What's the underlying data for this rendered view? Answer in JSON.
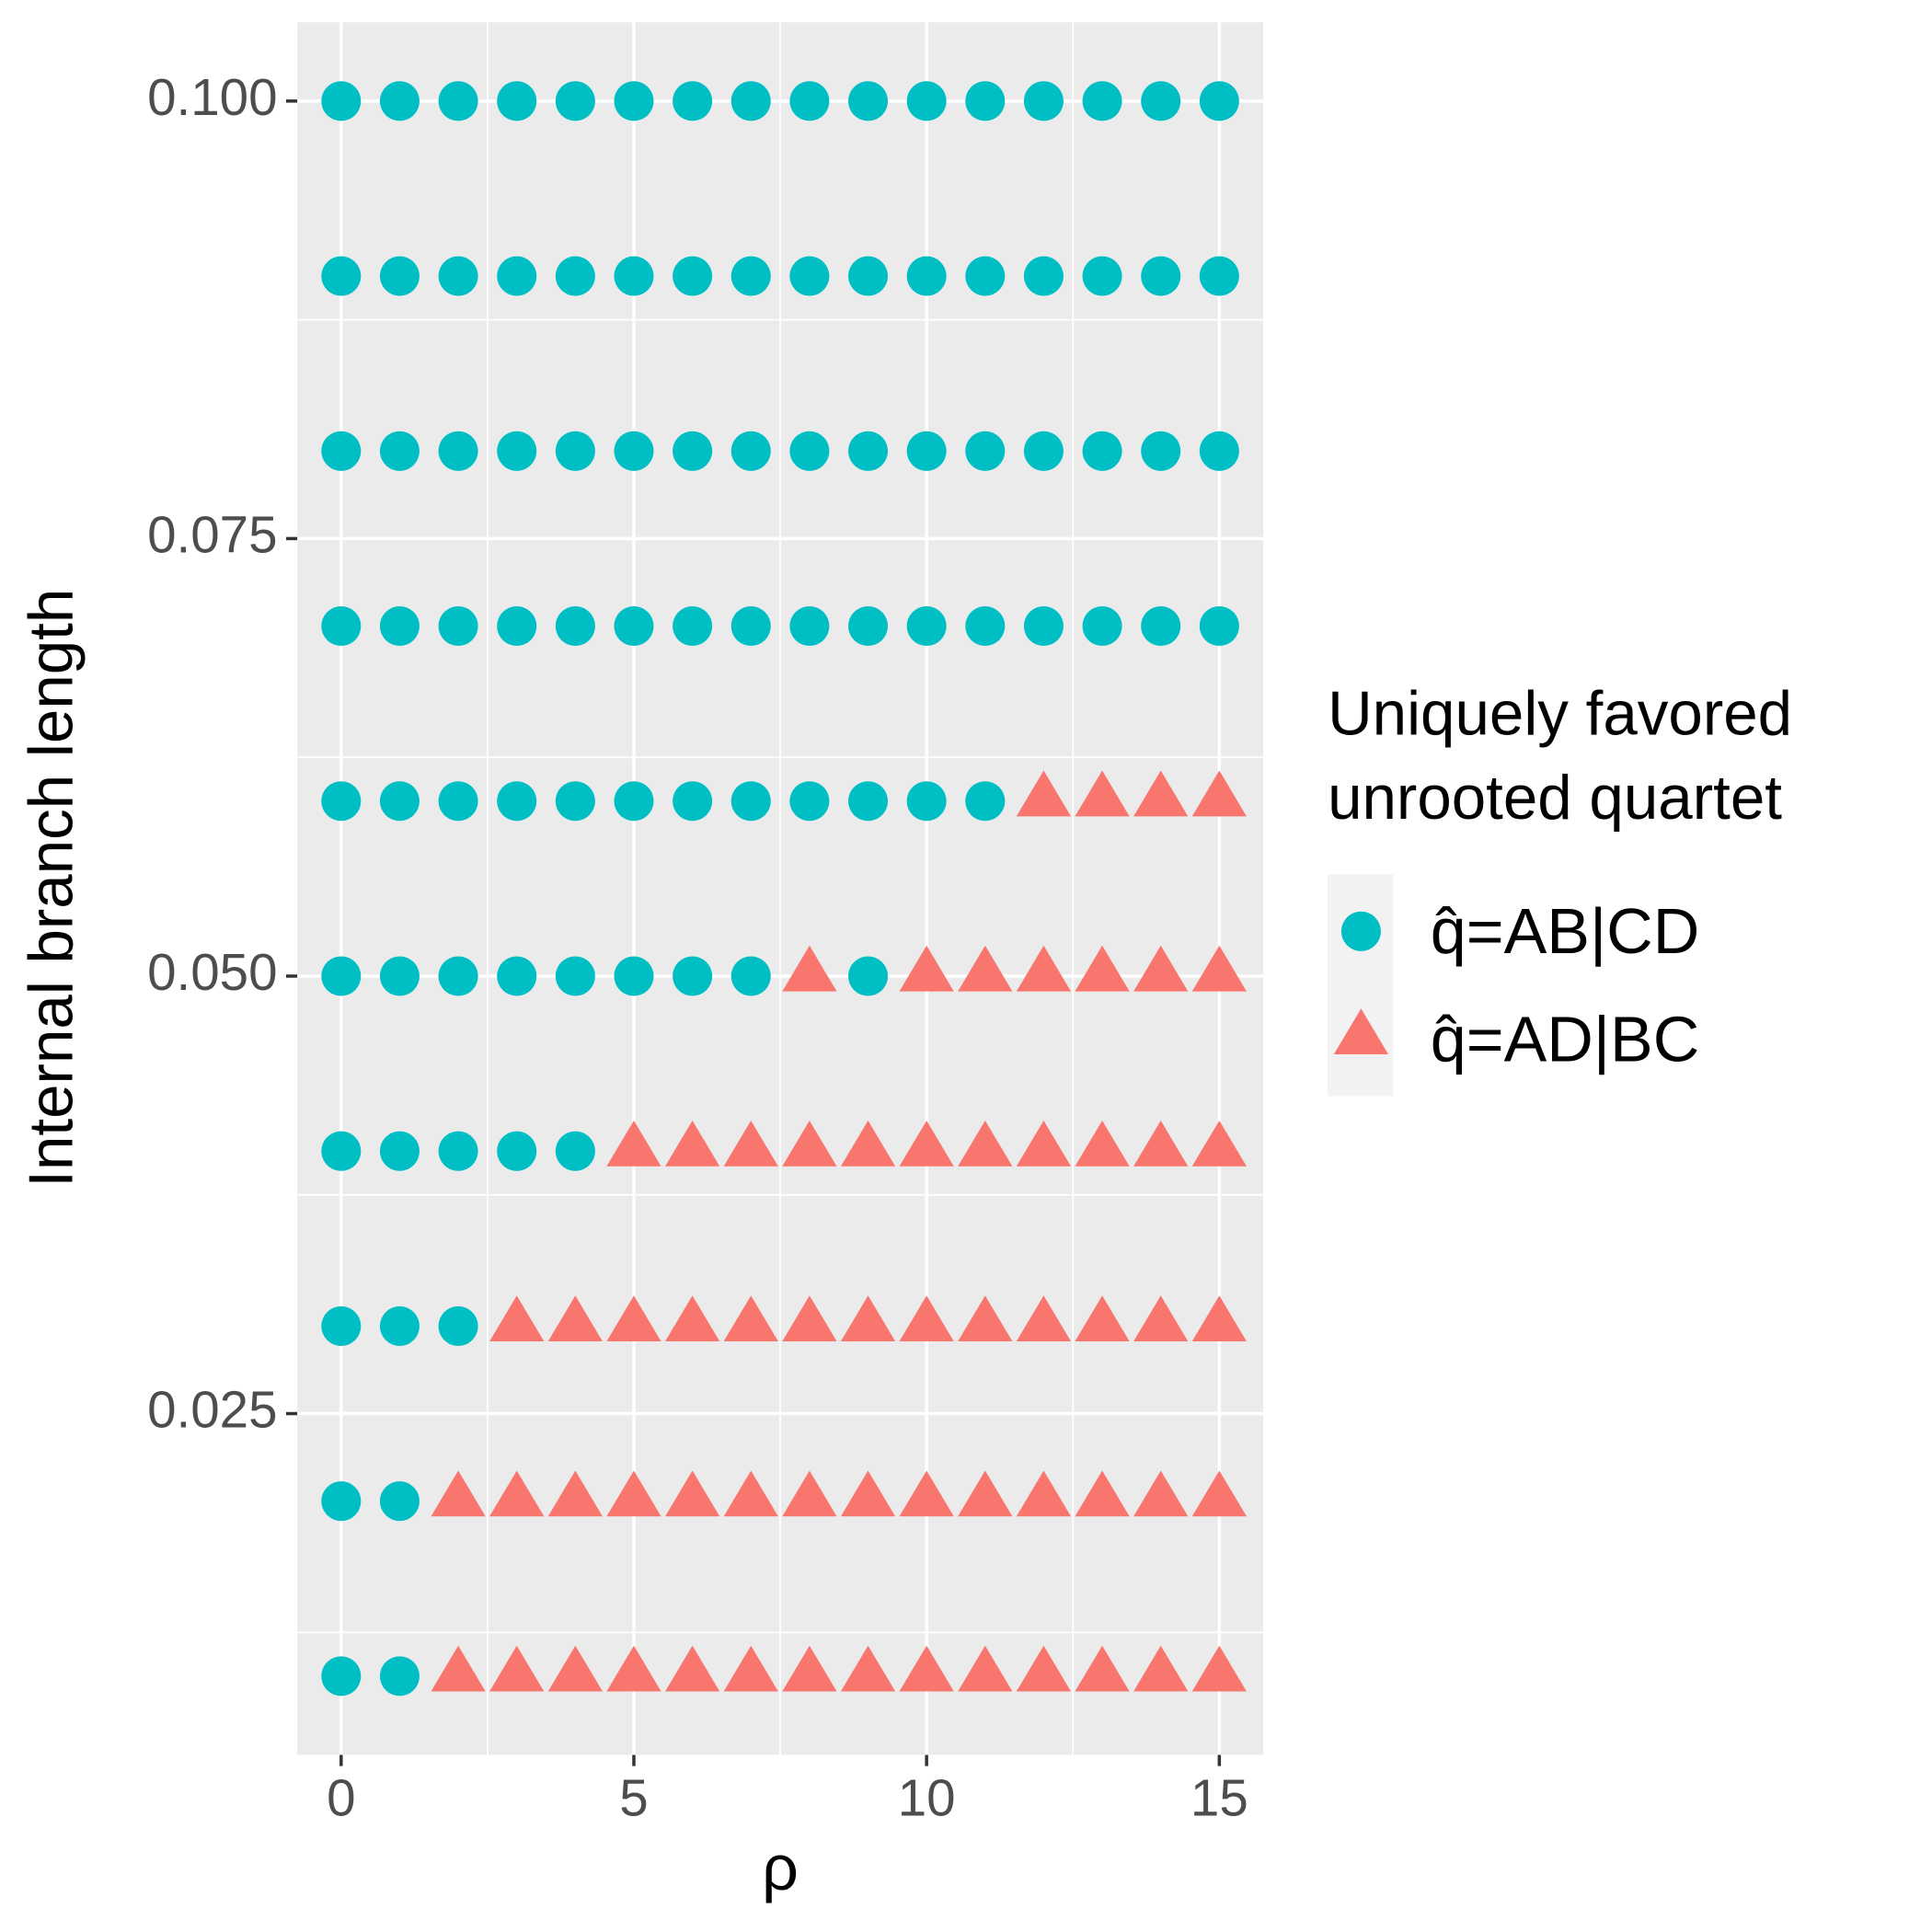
{
  "chart_data": {
    "type": "scatter",
    "x_label": "ρ",
    "y_label": "Internal branch length",
    "legend_title": [
      "Uniquely favored",
      "unrooted quartet"
    ],
    "legend_position": "right",
    "grid": true,
    "xlim": [
      -0.75,
      15.75
    ],
    "ylim": [
      0.0055,
      0.1045
    ],
    "xticks": [
      0,
      5,
      10,
      15
    ],
    "yticks": [
      0.025,
      {
        "value": 0.05,
        "label": "0.050"
      },
      0.075,
      {
        "value": 0.1,
        "label": "0.100"
      }
    ],
    "series": [
      {
        "name": "q̂=AB|CD",
        "color": "#00BFC4",
        "shape": "circle",
        "x": [
          0,
          1,
          0,
          1,
          0,
          1,
          2,
          0,
          1,
          2,
          3,
          4,
          0,
          1,
          2,
          3,
          4,
          5,
          6,
          7,
          9,
          0,
          1,
          2,
          3,
          4,
          5,
          6,
          7,
          8,
          9,
          10,
          11,
          0,
          1,
          2,
          3,
          4,
          5,
          6,
          7,
          8,
          9,
          10,
          11,
          12,
          13,
          14,
          15,
          0,
          1,
          2,
          3,
          4,
          5,
          6,
          7,
          8,
          9,
          10,
          11,
          12,
          13,
          14,
          15,
          0,
          1,
          2,
          3,
          4,
          5,
          6,
          7,
          8,
          9,
          10,
          11,
          12,
          13,
          14,
          15,
          0,
          1,
          2,
          3,
          4,
          5,
          6,
          7,
          8,
          9,
          10,
          11,
          12,
          13,
          14,
          15
        ],
        "values": [
          0.01,
          0.01,
          0.02,
          0.02,
          0.03,
          0.03,
          0.03,
          0.04,
          0.04,
          0.04,
          0.04,
          0.04,
          0.05,
          0.05,
          0.05,
          0.05,
          0.05,
          0.05,
          0.05,
          0.05,
          0.05,
          0.06,
          0.06,
          0.06,
          0.06,
          0.06,
          0.06,
          0.06,
          0.06,
          0.06,
          0.06,
          0.06,
          0.06,
          0.07,
          0.07,
          0.07,
          0.07,
          0.07,
          0.07,
          0.07,
          0.07,
          0.07,
          0.07,
          0.07,
          0.07,
          0.07,
          0.07,
          0.07,
          0.07,
          0.08,
          0.08,
          0.08,
          0.08,
          0.08,
          0.08,
          0.08,
          0.08,
          0.08,
          0.08,
          0.08,
          0.08,
          0.08,
          0.08,
          0.08,
          0.08,
          0.09,
          0.09,
          0.09,
          0.09,
          0.09,
          0.09,
          0.09,
          0.09,
          0.09,
          0.09,
          0.09,
          0.09,
          0.09,
          0.09,
          0.09,
          0.09,
          0.1,
          0.1,
          0.1,
          0.1,
          0.1,
          0.1,
          0.1,
          0.1,
          0.1,
          0.1,
          0.1,
          0.1,
          0.1,
          0.1,
          0.1,
          0.1
        ]
      },
      {
        "name": "q̂=AD|BC",
        "color": "#F8766D",
        "shape": "triangle",
        "x": [
          2,
          3,
          4,
          5,
          6,
          7,
          8,
          9,
          10,
          11,
          12,
          13,
          14,
          15,
          2,
          3,
          4,
          5,
          6,
          7,
          8,
          9,
          10,
          11,
          12,
          13,
          14,
          15,
          3,
          4,
          5,
          6,
          7,
          8,
          9,
          10,
          11,
          12,
          13,
          14,
          15,
          5,
          6,
          7,
          8,
          9,
          10,
          11,
          12,
          13,
          14,
          15,
          8,
          10,
          11,
          12,
          13,
          14,
          15,
          12,
          13,
          14,
          15
        ],
        "values": [
          0.01,
          0.01,
          0.01,
          0.01,
          0.01,
          0.01,
          0.01,
          0.01,
          0.01,
          0.01,
          0.01,
          0.01,
          0.01,
          0.01,
          0.02,
          0.02,
          0.02,
          0.02,
          0.02,
          0.02,
          0.02,
          0.02,
          0.02,
          0.02,
          0.02,
          0.02,
          0.02,
          0.02,
          0.03,
          0.03,
          0.03,
          0.03,
          0.03,
          0.03,
          0.03,
          0.03,
          0.03,
          0.03,
          0.03,
          0.03,
          0.03,
          0.04,
          0.04,
          0.04,
          0.04,
          0.04,
          0.04,
          0.04,
          0.04,
          0.04,
          0.04,
          0.04,
          0.05,
          0.05,
          0.05,
          0.05,
          0.05,
          0.05,
          0.05,
          0.06,
          0.06,
          0.06,
          0.06
        ]
      }
    ]
  }
}
